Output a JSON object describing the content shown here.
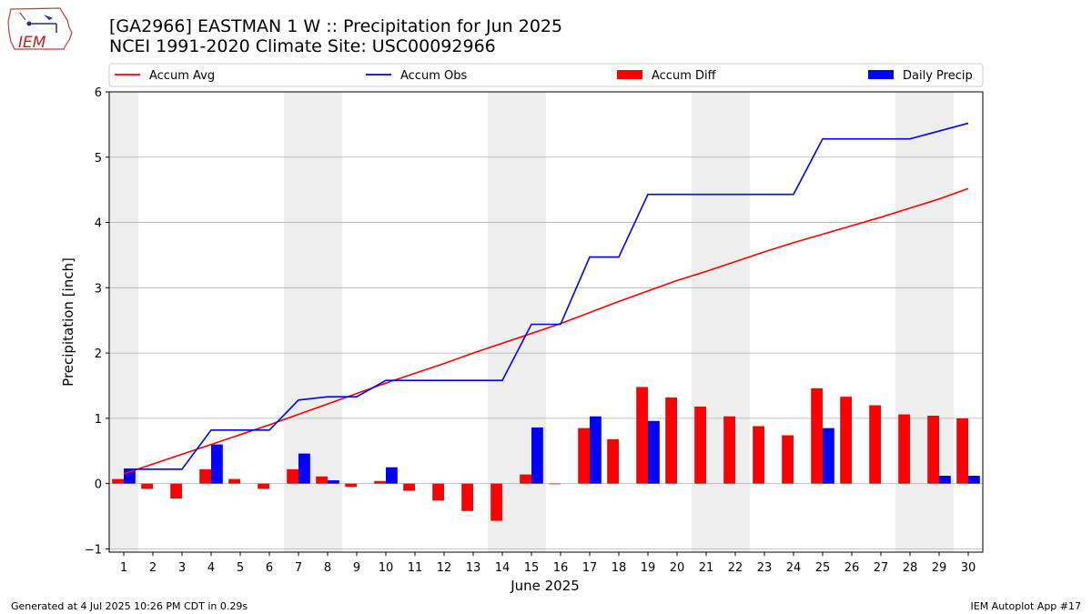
{
  "header": {
    "title_line1": "[GA2966] EASTMAN 1 W :: Precipitation for Jun 2025",
    "title_line2": "NCEI 1991-2020 Climate Site: USC00092966",
    "logo_text": "IEM"
  },
  "footer": {
    "left": "Generated at 4 Jul 2025 10:26 PM CDT in 0.29s",
    "right": "IEM Autoplot App #17"
  },
  "chart_data": {
    "type": "bar",
    "xlabel": "June 2025",
    "ylabel": "Precipitation [inch]",
    "ylim": [
      -1.05,
      6.0
    ],
    "yticks": [
      -1,
      0,
      1,
      2,
      3,
      4,
      5,
      6
    ],
    "grid": true,
    "legend_placement": "top",
    "days": [
      1,
      2,
      3,
      4,
      5,
      6,
      7,
      8,
      9,
      10,
      11,
      12,
      13,
      14,
      15,
      16,
      17,
      18,
      19,
      20,
      21,
      22,
      23,
      24,
      25,
      26,
      27,
      28,
      29,
      30
    ],
    "weekend_shading_days": [
      1,
      7,
      8,
      14,
      15,
      21,
      22,
      28,
      29
    ],
    "series": [
      {
        "name": "Accum Avg",
        "kind": "line",
        "color": "#ff0000",
        "values": [
          0.15,
          0.3,
          0.45,
          0.6,
          0.75,
          0.9,
          1.06,
          1.22,
          1.38,
          1.54,
          1.69,
          1.84,
          2.0,
          2.15,
          2.3,
          2.45,
          2.62,
          2.79,
          2.95,
          3.11,
          3.25,
          3.4,
          3.55,
          3.69,
          3.82,
          3.95,
          4.08,
          4.22,
          4.36,
          4.52
        ]
      },
      {
        "name": "Accum Obs",
        "kind": "line",
        "color": "#0000ff",
        "values": [
          0.22,
          0.22,
          0.22,
          0.82,
          0.82,
          0.82,
          1.28,
          1.33,
          1.33,
          1.58,
          1.58,
          1.58,
          1.58,
          1.58,
          2.44,
          2.44,
          3.47,
          3.47,
          4.43,
          4.43,
          4.43,
          4.43,
          4.43,
          4.43,
          5.28,
          5.28,
          5.28,
          5.28,
          5.4,
          5.52
        ]
      },
      {
        "name": "Accum Diff",
        "kind": "bar",
        "color": "#ff0000",
        "values": [
          0.07,
          -0.08,
          -0.23,
          0.22,
          0.07,
          -0.08,
          0.22,
          0.11,
          -0.05,
          0.04,
          -0.11,
          -0.26,
          -0.42,
          -0.57,
          0.14,
          -0.01,
          0.85,
          0.68,
          1.48,
          1.32,
          1.18,
          1.03,
          0.88,
          0.74,
          1.46,
          1.33,
          1.2,
          1.06,
          1.04,
          1.0
        ]
      },
      {
        "name": "Daily Precip",
        "kind": "bar",
        "color": "#0000ff",
        "values": [
          0.22,
          0,
          0,
          0.6,
          0,
          0,
          0.46,
          0.05,
          0,
          0.25,
          0,
          0,
          0,
          0,
          0.86,
          0,
          1.03,
          0,
          0.96,
          0,
          0,
          0,
          0,
          0,
          0.85,
          0,
          0,
          0,
          0.12,
          0.12
        ]
      }
    ]
  }
}
